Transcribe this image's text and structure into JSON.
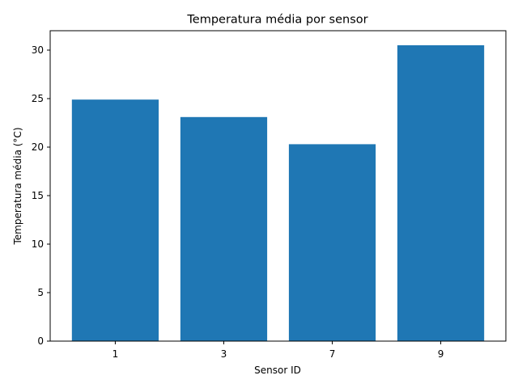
{
  "chart_data": {
    "type": "bar",
    "title": "Temperatura média por sensor",
    "xlabel": "Sensor ID",
    "ylabel": "Temperatura média (°C)",
    "categories": [
      "1",
      "3",
      "7",
      "9"
    ],
    "values": [
      24.9,
      23.1,
      20.3,
      30.5
    ],
    "ylim": [
      0,
      32
    ],
    "yticks": [
      0,
      5,
      10,
      15,
      20,
      25,
      30
    ],
    "grid": false,
    "bar_color": "#1f77b4"
  }
}
